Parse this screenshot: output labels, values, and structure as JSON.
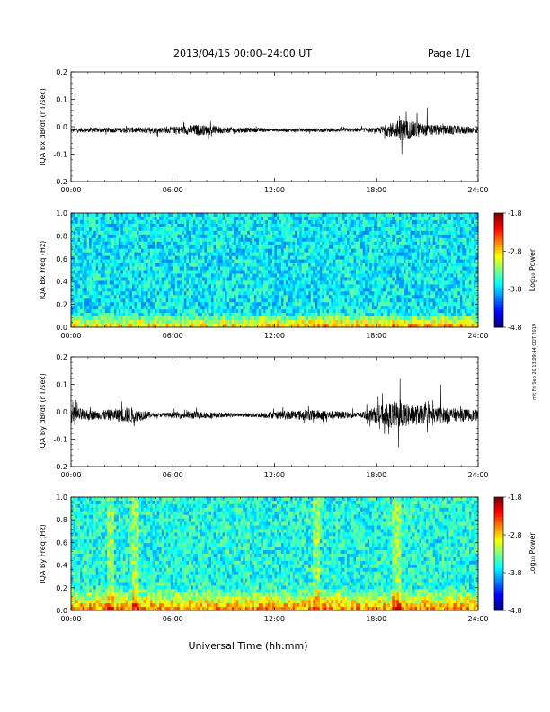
{
  "header": {
    "title": "2013/04/15  00:00–24:00 UT",
    "page": "Page 1/1"
  },
  "side_note": "mit Fri Sep 20 13:09:44 CDT 2019",
  "x_label": "Universal Time (hh:mm)",
  "x_ticks": [
    "00:00",
    "06:00",
    "12:00",
    "18:00",
    "24:00"
  ],
  "colors": {
    "trace": "#000000",
    "axis": "#000000"
  },
  "colorbar": {
    "ticks": [
      "-1.8",
      "-2.8",
      "-3.8",
      "-4.8"
    ],
    "label": "Log₁₀ Power",
    "range": [
      -4.8,
      -1.8
    ]
  },
  "chart_data": [
    {
      "type": "line",
      "ylabel": "IQA Bx dB/dt (nT/sec)",
      "xlim": [
        0,
        24
      ],
      "ylim": [
        -0.2,
        0.2
      ],
      "y_ticks": [
        "0.2",
        "0.1",
        "0.0",
        "-0.1",
        "-0.2"
      ],
      "grid": false,
      "activity": [
        {
          "t": 0,
          "amp": 0.008
        },
        {
          "t": 6,
          "amp": 0.012
        },
        {
          "t": 7.5,
          "amp": 0.02
        },
        {
          "t": 9,
          "amp": 0.012
        },
        {
          "t": 12,
          "amp": 0.006
        },
        {
          "t": 18,
          "amp": 0.008
        },
        {
          "t": 19.5,
          "amp": 0.04
        },
        {
          "t": 21,
          "amp": 0.02
        },
        {
          "t": 24,
          "amp": 0.012
        }
      ],
      "peaks": [
        {
          "t": 19.5,
          "value": -0.1
        },
        {
          "t": 21.0,
          "value": 0.07
        },
        {
          "t": 20.4,
          "value": 0.05
        }
      ]
    },
    {
      "type": "heatmap",
      "ylabel": "IQA Bx Freq (Hz)",
      "xlim": [
        0,
        24
      ],
      "ylim": [
        0.0,
        1.0
      ],
      "y_ticks": [
        "1.0",
        "0.8",
        "0.6",
        "0.4",
        "0.2",
        "0.0"
      ],
      "colorbar_range": [
        -4.8,
        -1.8
      ],
      "background_level": -3.7,
      "low_freq_level": -2.8,
      "low_freq_band_hz": 0.12
    },
    {
      "type": "line",
      "ylabel": "IQA By dB/dt (nT/sec)",
      "xlim": [
        0,
        24
      ],
      "ylim": [
        -0.2,
        0.2
      ],
      "y_ticks": [
        "0.2",
        "0.1",
        "0.0",
        "-0.1",
        "-0.2"
      ],
      "grid": false,
      "activity": [
        {
          "t": 0,
          "amp": 0.03
        },
        {
          "t": 1.5,
          "amp": 0.015
        },
        {
          "t": 3.5,
          "amp": 0.03
        },
        {
          "t": 5,
          "amp": 0.006
        },
        {
          "t": 7,
          "amp": 0.015
        },
        {
          "t": 10,
          "amp": 0.006
        },
        {
          "t": 14,
          "amp": 0.02
        },
        {
          "t": 17,
          "amp": 0.01
        },
        {
          "t": 19,
          "amp": 0.05
        },
        {
          "t": 21,
          "amp": 0.03
        },
        {
          "t": 24,
          "amp": 0.02
        }
      ],
      "peaks": [
        {
          "t": 19.3,
          "value": -0.13
        },
        {
          "t": 19.4,
          "value": 0.12
        },
        {
          "t": 21.8,
          "value": 0.1
        }
      ]
    },
    {
      "type": "heatmap",
      "ylabel": "IQA By Freq (Hz)",
      "xlim": [
        0,
        24
      ],
      "ylim": [
        0.0,
        1.0
      ],
      "y_ticks": [
        "1.0",
        "0.8",
        "0.6",
        "0.4",
        "0.2",
        "0.0"
      ],
      "colorbar_range": [
        -4.8,
        -1.8
      ],
      "background_level": -3.6,
      "low_freq_level": -2.5,
      "low_freq_band_hz": 0.2,
      "vertical_bands_hours": [
        2.3,
        3.8,
        14.5,
        19.2
      ]
    }
  ]
}
